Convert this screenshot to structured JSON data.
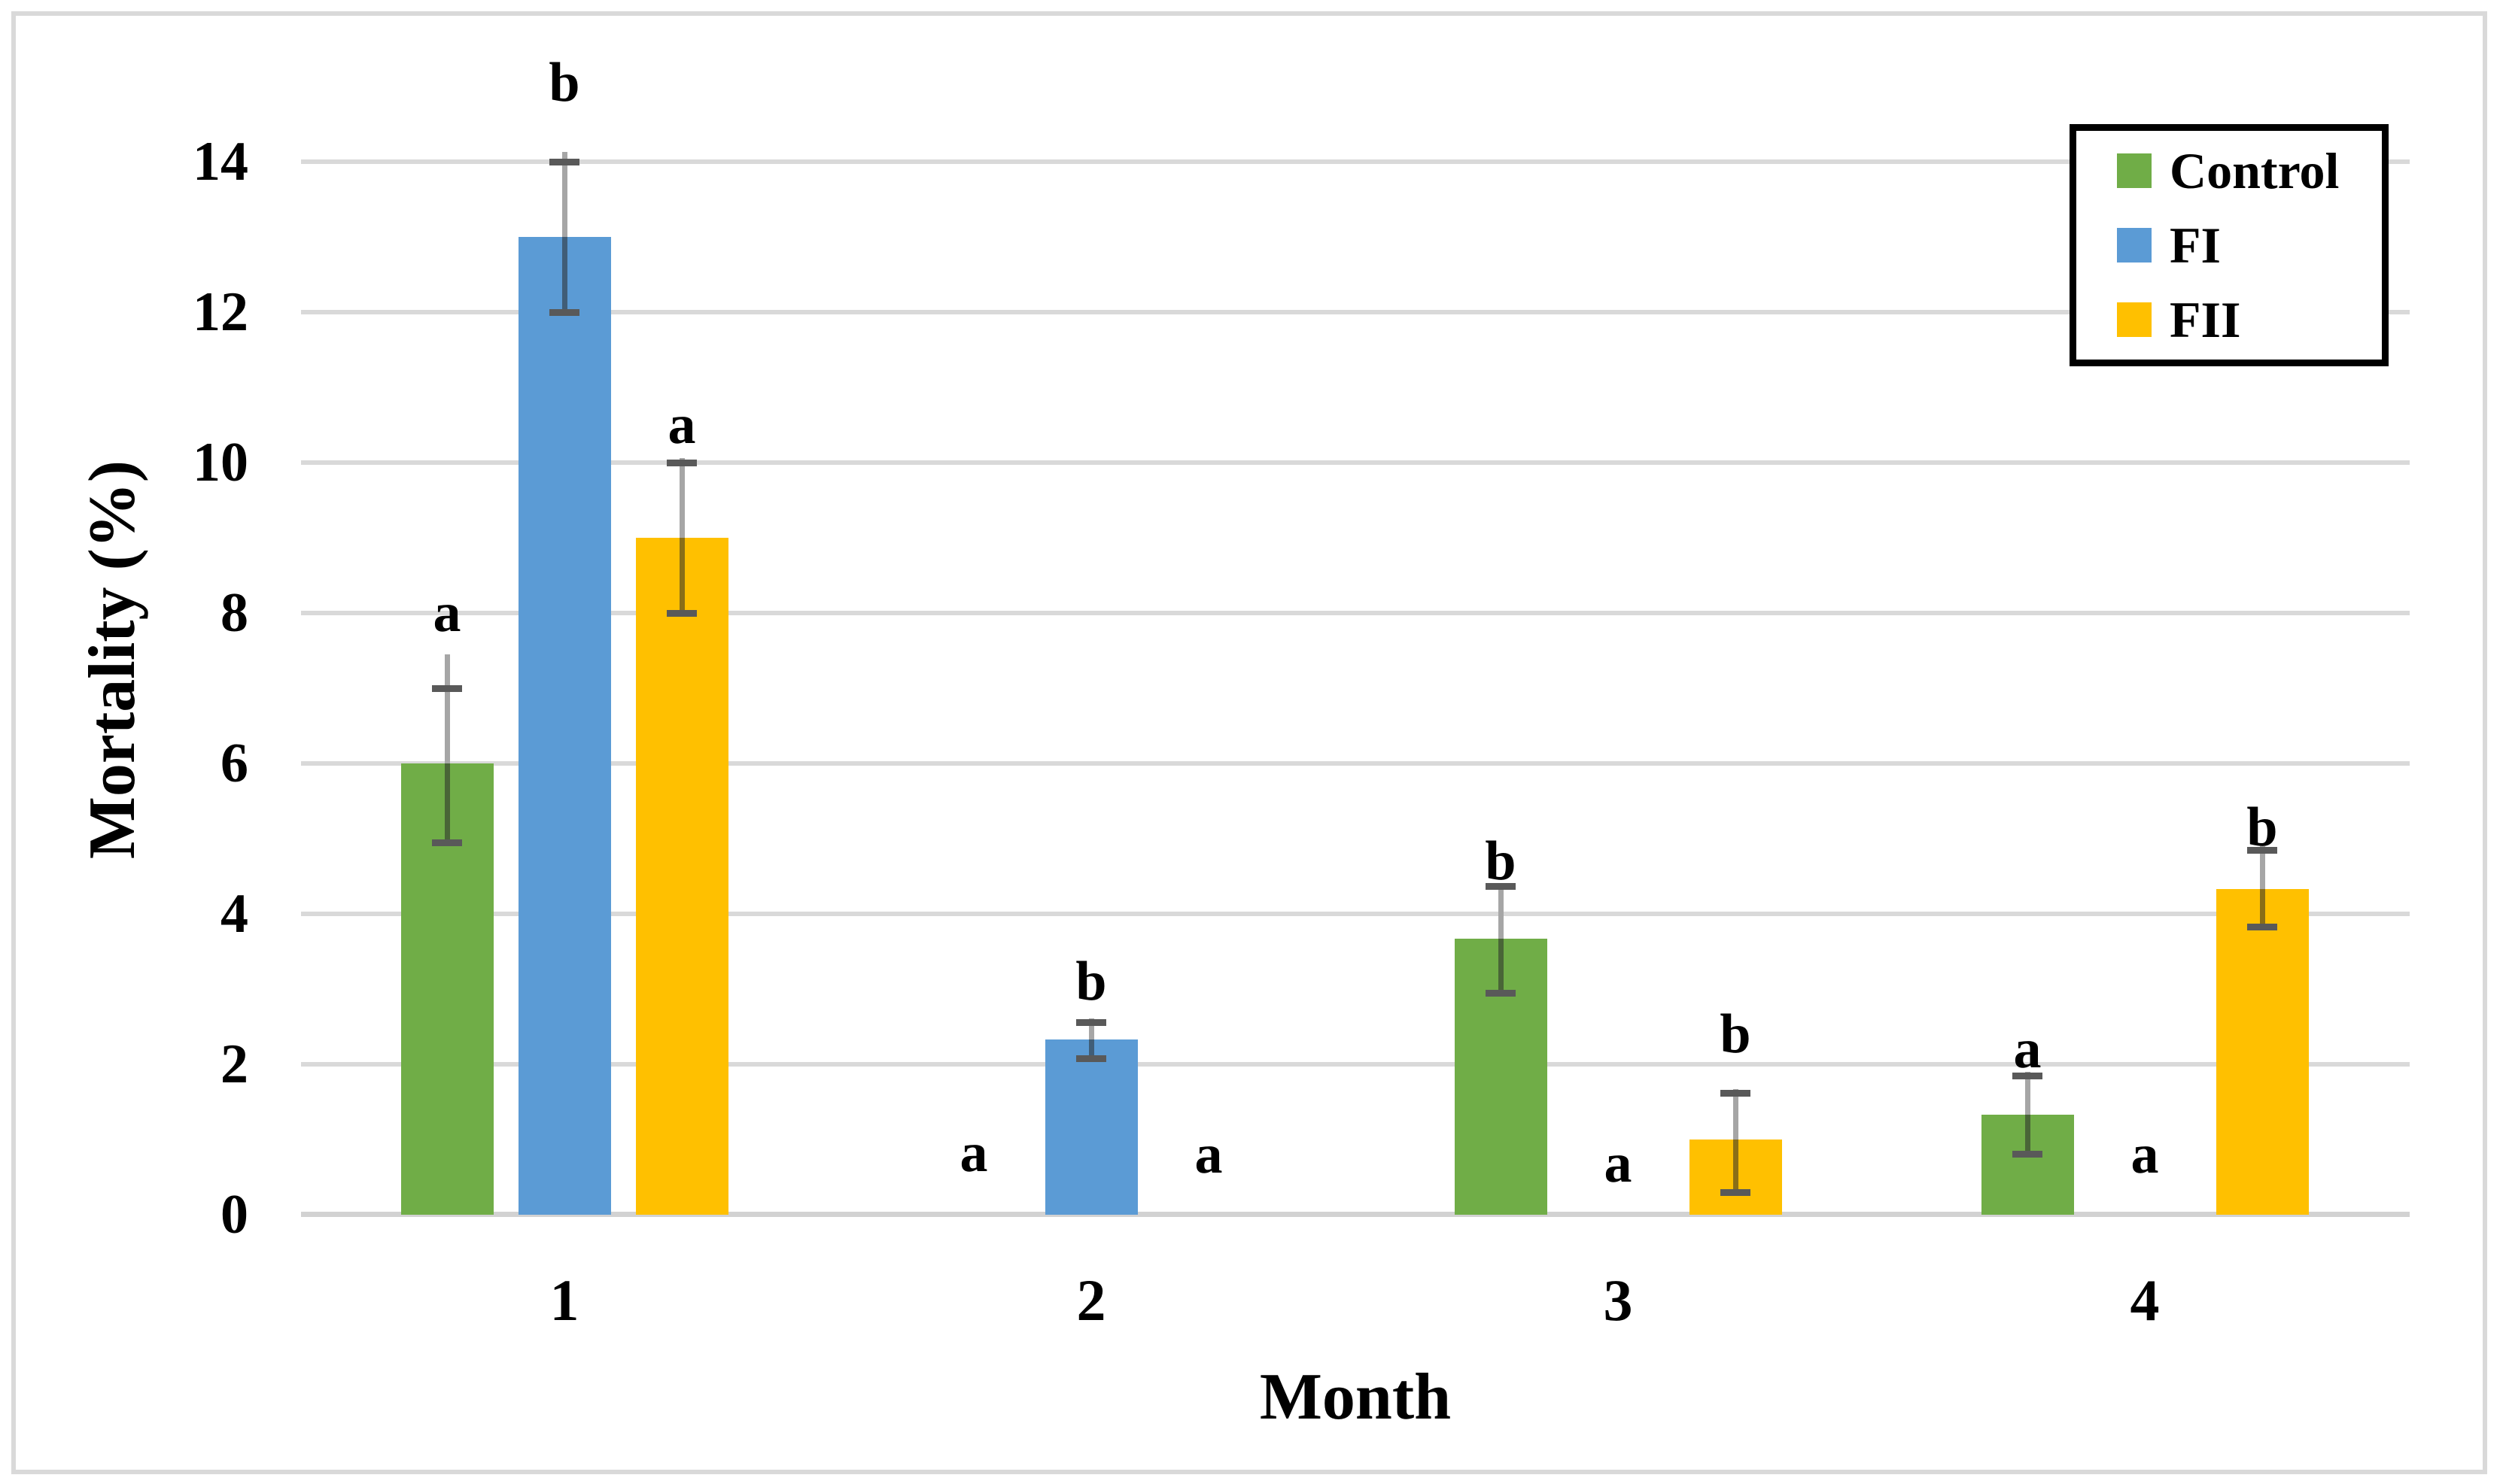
{
  "chart_data": {
    "type": "bar",
    "title": "",
    "xlabel": "Month",
    "ylabel": "Mortality (%)",
    "ylim": [
      0,
      14
    ],
    "yticks": [
      0,
      2,
      4,
      6,
      8,
      10,
      12,
      14
    ],
    "grid": "horizontal",
    "categories": [
      "1",
      "2",
      "3",
      "4"
    ],
    "series": [
      {
        "name": "Control",
        "color": "#70AD47",
        "values": [
          6,
          0,
          3.67,
          1.33
        ],
        "err_up": [
          1.0,
          0,
          0.7,
          0.52
        ],
        "err_dn": [
          1.05,
          0,
          0.72,
          0.52
        ],
        "line_ext": [
          0.45,
          0,
          0.02,
          0.05
        ],
        "letters": [
          "a",
          "a",
          "b",
          "a"
        ],
        "letter_y": [
          8.0,
          0.82,
          4.7,
          2.2
        ]
      },
      {
        "name": "FI",
        "color": "#5B9BD5",
        "values": [
          13,
          2.33,
          0,
          0
        ],
        "err_up": [
          1.0,
          0.23,
          0,
          0
        ],
        "err_dn": [
          1.0,
          0.25,
          0,
          0
        ],
        "line_ext": [
          0.13,
          0.05,
          0,
          0
        ],
        "letters": [
          "b",
          "b",
          "a",
          "a"
        ],
        "letter_y": [
          15.05,
          3.1,
          0.68,
          0.8
        ]
      },
      {
        "name": "FII",
        "color": "#FFC000",
        "values": [
          9,
          0,
          1.0,
          4.33
        ],
        "err_up": [
          1.0,
          0,
          0.62,
          0.52
        ],
        "err_dn": [
          1.0,
          0,
          0.7,
          0.5
        ],
        "line_ext": [
          0.06,
          0,
          0.05,
          0.05
        ],
        "letters": [
          "a",
          "a",
          "b",
          "b"
        ],
        "letter_y": [
          10.5,
          0.8,
          2.4,
          5.15
        ]
      }
    ],
    "legend": {
      "position": "top-right",
      "entries": [
        "Control",
        "FI",
        "FII"
      ]
    },
    "error_bar_colors": {
      "line": "#A6A6A6",
      "cap": "#595959"
    },
    "gridline_color": "#D9D9D9",
    "frame_color": "#D9D9D9"
  }
}
